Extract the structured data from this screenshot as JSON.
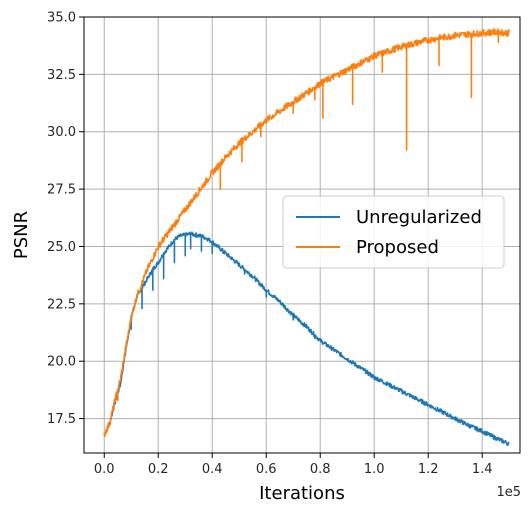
{
  "chart_data": {
    "type": "line",
    "title": "",
    "xlabel": "Iterations",
    "ylabel": "PSNR",
    "x_offset_label": "1e5",
    "xlim": [
      -0.075,
      1.54
    ],
    "ylim": [
      16.0,
      35.0
    ],
    "x_ticks": [
      0.0,
      0.2,
      0.4,
      0.6,
      0.8,
      1.0,
      1.2,
      1.4
    ],
    "x_tick_labels": [
      "0.0",
      "0.2",
      "0.4",
      "0.6",
      "0.8",
      "1.0",
      "1.2",
      "1.4"
    ],
    "y_ticks": [
      17.5,
      20.0,
      22.5,
      25.0,
      27.5,
      30.0,
      32.5,
      35.0
    ],
    "y_tick_labels": [
      "17.5",
      "20.0",
      "22.5",
      "25.0",
      "27.5",
      "30.0",
      "32.5",
      "35.0"
    ],
    "grid": true,
    "legend_position": "center-right",
    "series": [
      {
        "name": "Unregularized",
        "color": "#1f77b4",
        "x": [
          0.0,
          0.02,
          0.04,
          0.06,
          0.08,
          0.1,
          0.12,
          0.14,
          0.16,
          0.18,
          0.2,
          0.22,
          0.24,
          0.26,
          0.28,
          0.3,
          0.32,
          0.34,
          0.36,
          0.38,
          0.4,
          0.42,
          0.45,
          0.5,
          0.55,
          0.6,
          0.65,
          0.7,
          0.75,
          0.8,
          0.85,
          0.9,
          0.95,
          1.0,
          1.05,
          1.1,
          1.15,
          1.2,
          1.25,
          1.3,
          1.35,
          1.4,
          1.45,
          1.5
        ],
        "values": [
          16.8,
          17.3,
          18.2,
          19.0,
          20.5,
          21.9,
          22.8,
          23.2,
          23.6,
          24.0,
          24.3,
          24.7,
          25.0,
          25.3,
          25.45,
          25.5,
          25.55,
          25.5,
          25.45,
          25.35,
          25.2,
          25.0,
          24.7,
          24.2,
          23.7,
          23.1,
          22.6,
          22.0,
          21.5,
          20.9,
          20.5,
          20.1,
          19.7,
          19.3,
          19.0,
          18.7,
          18.4,
          18.1,
          17.8,
          17.5,
          17.2,
          16.95,
          16.65,
          16.4
        ],
        "dips": [
          [
            0.05,
            18.3
          ],
          [
            0.1,
            21.4
          ],
          [
            0.14,
            22.3
          ],
          [
            0.18,
            23.1
          ],
          [
            0.22,
            23.6
          ],
          [
            0.26,
            24.3
          ],
          [
            0.3,
            24.6
          ],
          [
            0.32,
            24.9
          ],
          [
            0.36,
            24.8
          ],
          [
            0.4,
            24.7
          ],
          [
            0.44,
            24.7
          ],
          [
            0.52,
            23.8
          ],
          [
            0.6,
            22.8
          ],
          [
            0.7,
            21.8
          ],
          [
            0.78,
            21.0
          ],
          [
            0.88,
            20.2
          ],
          [
            1.0,
            19.2
          ]
        ]
      },
      {
        "name": "Proposed",
        "color": "#ff7f0e",
        "x": [
          0.0,
          0.02,
          0.04,
          0.06,
          0.08,
          0.1,
          0.12,
          0.14,
          0.16,
          0.18,
          0.2,
          0.25,
          0.3,
          0.35,
          0.4,
          0.45,
          0.5,
          0.55,
          0.6,
          0.65,
          0.7,
          0.75,
          0.8,
          0.85,
          0.9,
          0.95,
          1.0,
          1.05,
          1.1,
          1.15,
          1.2,
          1.25,
          1.3,
          1.35,
          1.4,
          1.45,
          1.5
        ],
        "values": [
          16.8,
          17.3,
          18.3,
          19.2,
          20.6,
          21.9,
          22.8,
          23.4,
          24.0,
          24.5,
          25.0,
          25.8,
          26.6,
          27.4,
          28.2,
          28.9,
          29.5,
          30.0,
          30.5,
          30.9,
          31.3,
          31.7,
          32.1,
          32.4,
          32.7,
          33.0,
          33.3,
          33.5,
          33.7,
          33.85,
          34.0,
          34.1,
          34.2,
          34.25,
          34.3,
          34.35,
          34.3
        ],
        "dips": [
          [
            0.05,
            18.3
          ],
          [
            0.43,
            27.5
          ],
          [
            0.51,
            28.7
          ],
          [
            0.58,
            29.8
          ],
          [
            0.7,
            30.8
          ],
          [
            0.78,
            31.4
          ],
          [
            0.81,
            30.6
          ],
          [
            0.92,
            31.2
          ],
          [
            1.03,
            32.6
          ],
          [
            1.12,
            29.2
          ],
          [
            1.24,
            32.9
          ],
          [
            1.36,
            31.5
          ],
          [
            1.46,
            33.9
          ]
        ]
      }
    ]
  }
}
